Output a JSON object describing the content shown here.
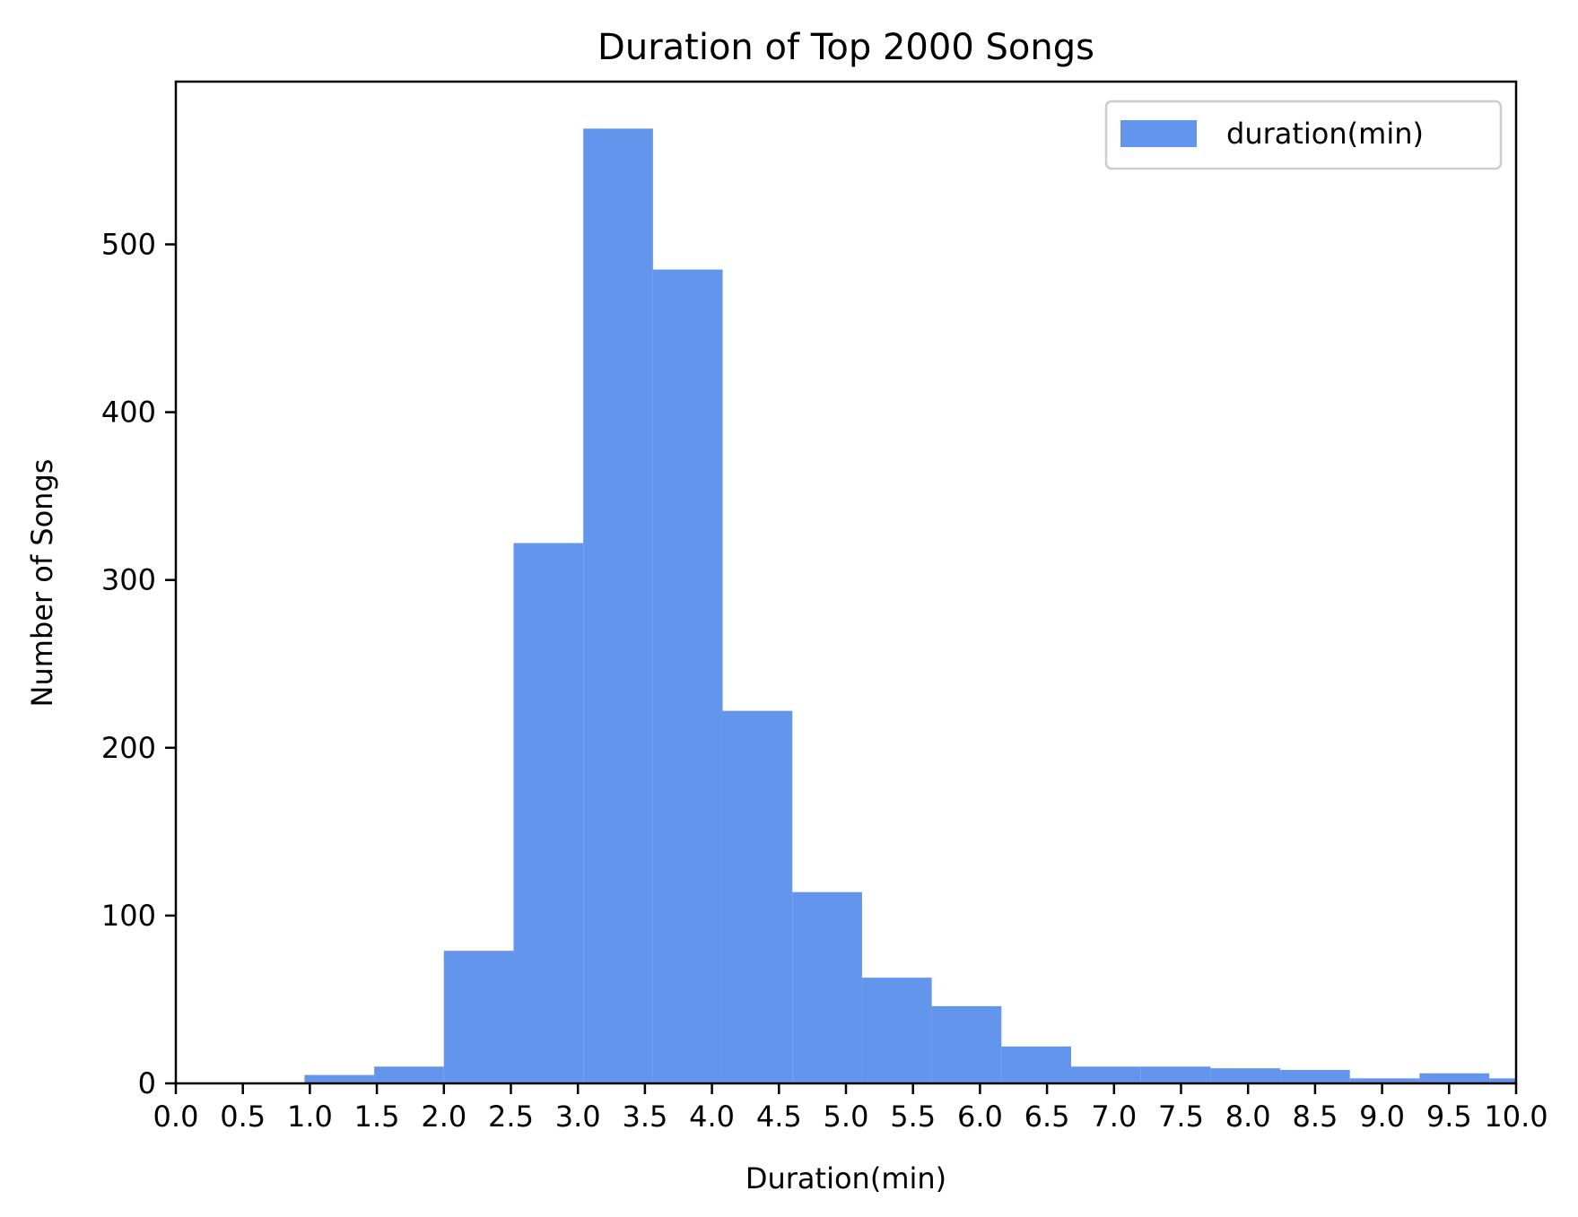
{
  "chart_data": {
    "type": "bar",
    "title": "Duration of Top 2000 Songs",
    "xlabel": "Duration(min)",
    "ylabel": "Number of Songs",
    "xlim": [
      0,
      10
    ],
    "ylim": [
      0,
      597
    ],
    "xticks": [
      0,
      0.5,
      1,
      1.5,
      2,
      2.5,
      3,
      3.5,
      4,
      4.5,
      5,
      5.5,
      6,
      6.5,
      7,
      7.5,
      8,
      8.5,
      9,
      9.5,
      10
    ],
    "xtick_labels": [
      "0.0",
      "0.5",
      "1.0",
      "1.5",
      "2.0",
      "2.5",
      "3.0",
      "3.5",
      "4.0",
      "4.5",
      "5.0",
      "5.5",
      "6.0",
      "6.5",
      "7.0",
      "7.5",
      "8.0",
      "8.5",
      "9.0",
      "9.5",
      "10.0"
    ],
    "yticks": [
      0,
      100,
      200,
      300,
      400,
      500
    ],
    "ytick_labels": [
      "0",
      "100",
      "200",
      "300",
      "400",
      "500"
    ],
    "grid": false,
    "legend_position": "upper right",
    "color": "#6495ED",
    "series": [
      {
        "name": "duration(min)",
        "bins": [
          {
            "x0": 0.96,
            "x1": 1.48,
            "count": 5
          },
          {
            "x0": 1.48,
            "x1": 2.0,
            "count": 10
          },
          {
            "x0": 2.0,
            "x1": 2.52,
            "count": 79
          },
          {
            "x0": 2.52,
            "x1": 3.04,
            "count": 322
          },
          {
            "x0": 3.04,
            "x1": 3.56,
            "count": 569
          },
          {
            "x0": 3.56,
            "x1": 4.08,
            "count": 485
          },
          {
            "x0": 4.08,
            "x1": 4.6,
            "count": 222
          },
          {
            "x0": 4.6,
            "x1": 5.12,
            "count": 114
          },
          {
            "x0": 5.12,
            "x1": 5.64,
            "count": 63
          },
          {
            "x0": 5.64,
            "x1": 6.16,
            "count": 46
          },
          {
            "x0": 6.16,
            "x1": 6.68,
            "count": 22
          },
          {
            "x0": 6.68,
            "x1": 7.2,
            "count": 10
          },
          {
            "x0": 7.2,
            "x1": 7.72,
            "count": 10
          },
          {
            "x0": 7.72,
            "x1": 8.24,
            "count": 9
          },
          {
            "x0": 8.24,
            "x1": 8.76,
            "count": 8
          },
          {
            "x0": 8.76,
            "x1": 9.28,
            "count": 3
          },
          {
            "x0": 9.28,
            "x1": 9.8,
            "count": 6
          },
          {
            "x0": 9.8,
            "x1": 10.32,
            "count": 3
          }
        ]
      }
    ]
  }
}
